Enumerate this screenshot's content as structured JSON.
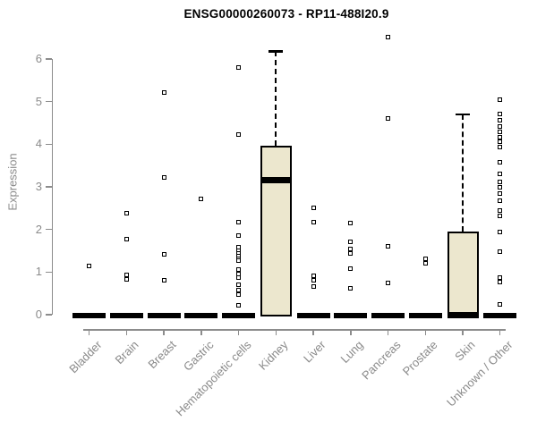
{
  "chart_data": {
    "type": "boxplot",
    "title": "ENSG00000260073 - RP11-488I20.9",
    "ylabel": "Expression",
    "xlabel": "",
    "ylim": [
      0,
      6
    ],
    "yticks": [
      0,
      1,
      2,
      3,
      4,
      5,
      6
    ],
    "grid": false,
    "legend": "none",
    "categories": [
      "Bladder",
      "Brain",
      "Breast",
      "Gastric",
      "Hematopoietic cells",
      "Kidney",
      "Liver",
      "Lung",
      "Pancreas",
      "Prostate",
      "Skin",
      "Unknown / Other"
    ],
    "boxes": [
      {
        "category": "Bladder",
        "median": 0,
        "q1": 0,
        "q3": 0,
        "whisker_low": 0,
        "whisker_high": 0,
        "outliers": [
          1.15
        ]
      },
      {
        "category": "Brain",
        "median": 0,
        "q1": 0,
        "q3": 0,
        "whisker_low": 0,
        "whisker_high": 0,
        "outliers": [
          2.39,
          1.77,
          0.93,
          0.83
        ]
      },
      {
        "category": "Breast",
        "median": 0,
        "q1": 0,
        "q3": 0,
        "whisker_low": 0,
        "whisker_high": 0,
        "outliers": [
          5.22,
          3.23,
          1.41,
          0.81
        ]
      },
      {
        "category": "Gastric",
        "median": 0,
        "q1": 0,
        "q3": 0,
        "whisker_low": 0,
        "whisker_high": 0,
        "outliers": [
          2.71
        ]
      },
      {
        "category": "Hematopoietic cells",
        "median": 0,
        "q1": 0,
        "q3": 0,
        "whisker_low": 0,
        "whisker_high": 0,
        "outliers": [
          5.81,
          4.23,
          2.18,
          1.86,
          1.58,
          1.5,
          1.44,
          1.38,
          1.32,
          1.26,
          1.06,
          0.95,
          0.88,
          0.71,
          0.57,
          0.47,
          0.23
        ]
      },
      {
        "category": "Kidney",
        "median": 3.15,
        "q1": 0,
        "q3": 3.97,
        "whisker_low": 0,
        "whisker_high": 6.18,
        "outliers": []
      },
      {
        "category": "Liver",
        "median": 0,
        "q1": 0,
        "q3": 0,
        "whisker_low": 0,
        "whisker_high": 0,
        "outliers": [
          2.51,
          2.18,
          0.92,
          0.81,
          0.67
        ]
      },
      {
        "category": "Lung",
        "median": 0,
        "q1": 0,
        "q3": 0,
        "whisker_low": 0,
        "whisker_high": 0,
        "outliers": [
          2.14,
          1.71,
          1.55,
          1.44,
          1.07,
          0.62
        ]
      },
      {
        "category": "Pancreas",
        "median": 0,
        "q1": 0,
        "q3": 0,
        "whisker_low": 0,
        "whisker_high": 0,
        "outliers": [
          6.52,
          4.6,
          1.6,
          0.74
        ]
      },
      {
        "category": "Prostate",
        "median": 0,
        "q1": 0,
        "q3": 0,
        "whisker_low": 0,
        "whisker_high": 0,
        "outliers": [
          1.32,
          1.2
        ]
      },
      {
        "category": "Skin",
        "median": 0,
        "q1": 0,
        "q3": 1.95,
        "whisker_low": 0,
        "whisker_high": 4.7,
        "outliers": []
      },
      {
        "category": "Unknown / Other",
        "median": 0,
        "q1": 0,
        "q3": 0,
        "whisker_low": 0,
        "whisker_high": 0,
        "outliers": [
          5.05,
          4.7,
          4.56,
          4.42,
          4.3,
          4.17,
          4.05,
          3.93,
          3.58,
          3.3,
          3.12,
          2.98,
          2.84,
          2.67,
          2.45,
          2.32,
          1.93,
          1.48,
          0.88,
          0.76,
          0.25
        ]
      }
    ],
    "colors": {
      "box_fill": "#ece7ce",
      "box_border": "#000000",
      "median": "#000000",
      "whisker": "#000000",
      "outlier": "#000000",
      "axis": "#8c8c8c",
      "tick_text": "#8a8a8a",
      "title_text": "#000000",
      "background": "#ffffff"
    }
  }
}
